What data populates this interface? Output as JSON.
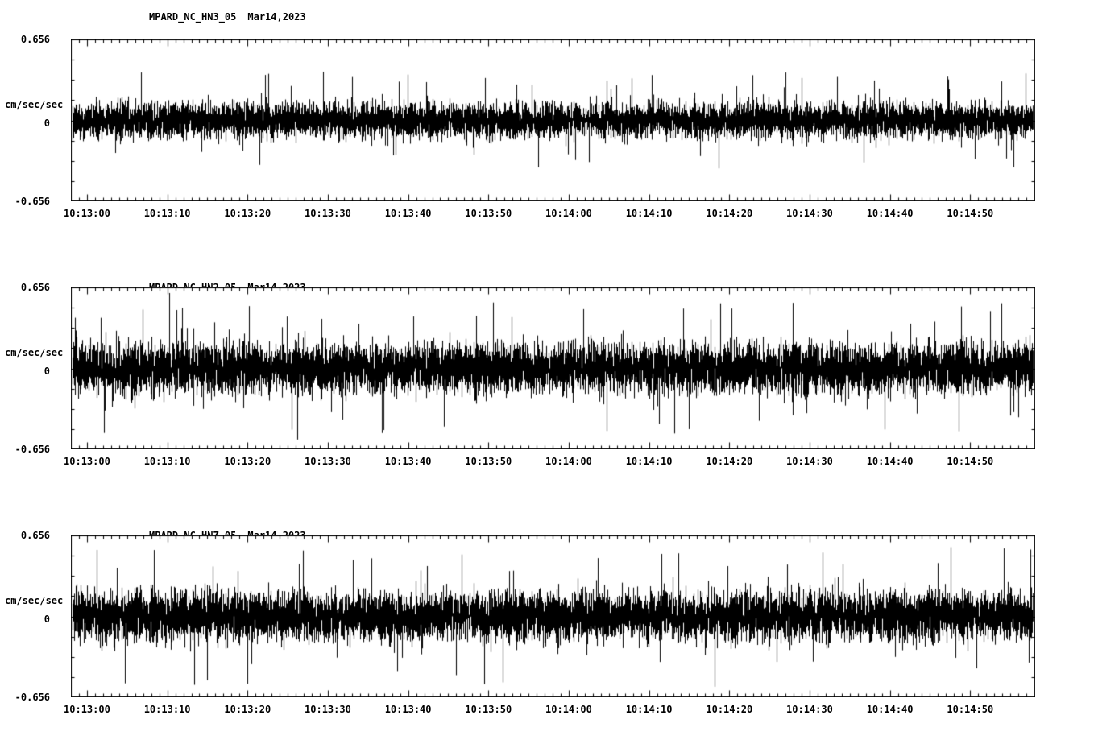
{
  "colors": {
    "background": "#ffffff",
    "trace": "#000000",
    "axis": "#000000"
  },
  "panels": [
    {
      "station": "MPARD_NC_HN3_05",
      "date": "Mar14,2023",
      "ylabel": "cm/sec/sec",
      "y_max": "0.656",
      "y_zero": "0",
      "y_min": "-0.656"
    },
    {
      "station": "MPARD_NC_HN2_05",
      "date": "Mar14,2023",
      "ylabel": "cm/sec/sec",
      "y_max": "0.656",
      "y_zero": "0",
      "y_min": "-0.656"
    },
    {
      "station": "MPARD_NC_HNZ_05",
      "date": "Mar14,2023",
      "ylabel": "cm/sec/sec",
      "y_max": "0.656",
      "y_zero": "0",
      "y_min": "-0.656"
    }
  ],
  "chart_data": [
    {
      "type": "line",
      "title": "MPARD_NC_HN3_05  Mar14,2023",
      "ylabel": "cm/sec/sec",
      "ylim": [
        -0.656,
        0.656
      ],
      "y_ticks": [
        -0.656,
        0,
        0.656
      ],
      "x_ticks": [
        "10:13:00",
        "10:13:10",
        "10:13:20",
        "10:13:30",
        "10:13:40",
        "10:13:50",
        "10:14:00",
        "10:14:10",
        "10:14:20",
        "10:14:30",
        "10:14:40",
        "10:14:50"
      ],
      "x_tick_interval_s": 10,
      "duration_s": 120,
      "signal": "continuous broadband seismic noise, zero mean",
      "noise_rms": 0.07,
      "noise_peak": 0.4,
      "seed": 101
    },
    {
      "type": "line",
      "title": "MPARD_NC_HN2_05  Mar14,2023",
      "ylabel": "cm/sec/sec",
      "ylim": [
        -0.656,
        0.656
      ],
      "y_ticks": [
        -0.656,
        0,
        0.656
      ],
      "x_ticks": [
        "10:13:00",
        "10:13:10",
        "10:13:20",
        "10:13:30",
        "10:13:40",
        "10:13:50",
        "10:14:00",
        "10:14:10",
        "10:14:20",
        "10:14:30",
        "10:14:40",
        "10:14:50"
      ],
      "x_tick_interval_s": 10,
      "duration_s": 120,
      "signal": "continuous broadband seismic noise, zero mean",
      "noise_rms": 0.1,
      "noise_peak": 0.54,
      "seed": 202
    },
    {
      "type": "line",
      "title": "MPARD_NC_HNZ_05  Mar14,2023",
      "ylabel": "cm/sec/sec",
      "ylim": [
        -0.656,
        0.656
      ],
      "y_ticks": [
        -0.656,
        0,
        0.656
      ],
      "x_ticks": [
        "10:13:00",
        "10:13:10",
        "10:13:20",
        "10:13:30",
        "10:13:40",
        "10:13:50",
        "10:14:00",
        "10:14:10",
        "10:14:20",
        "10:14:30",
        "10:14:40",
        "10:14:50"
      ],
      "x_tick_interval_s": 10,
      "duration_s": 120,
      "signal": "continuous broadband seismic noise, zero mean",
      "noise_rms": 0.1,
      "noise_peak": 0.58,
      "seed": 303
    }
  ]
}
